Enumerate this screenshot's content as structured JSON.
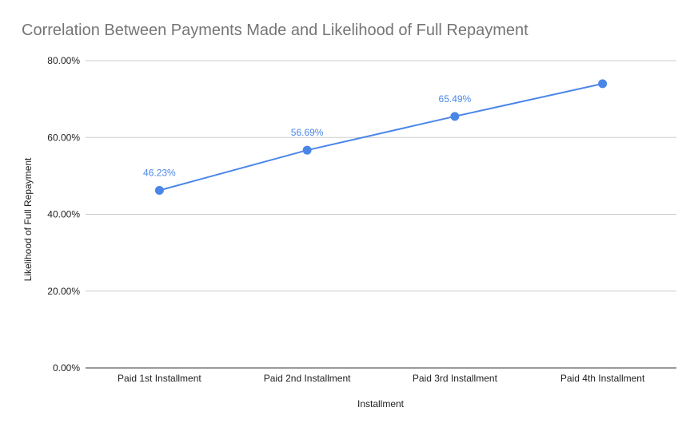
{
  "chart_data": {
    "type": "line",
    "title": "Correlation Between Payments Made and Likelihood of Full Repayment",
    "xlabel": "Installment",
    "ylabel": "Likelihood of Full Repayment",
    "categories": [
      "Paid 1st Installment",
      "Paid 2nd Installment",
      "Paid 3rd Installment",
      "Paid 4th Installment"
    ],
    "series": [
      {
        "values": [
          46.23,
          56.69,
          65.49,
          74.0
        ]
      }
    ],
    "data_labels": [
      "46.23%",
      "56.69%",
      "65.49%",
      ""
    ],
    "ylim": [
      0,
      80
    ],
    "yticks": [
      "0.00%",
      "20.00%",
      "40.00%",
      "60.00%",
      "80.00%"
    ],
    "grid": true,
    "legend": "none",
    "colors": {
      "series": "#4a86e8",
      "grid": "#cccccc",
      "axis": "#333333",
      "title": "#757575"
    }
  }
}
